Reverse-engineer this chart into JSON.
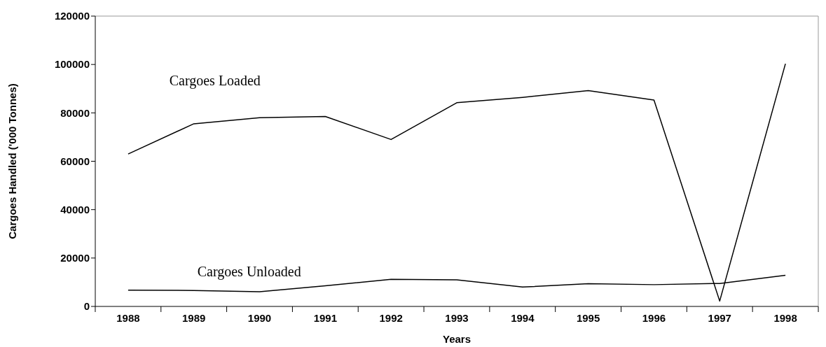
{
  "chart_data": {
    "type": "line",
    "xlabel": "Years",
    "ylabel": "Cargoes Handled ('000 Tonnes)",
    "categories": [
      "1988",
      "1989",
      "1990",
      "1991",
      "1992",
      "1993",
      "1994",
      "1995",
      "1996",
      "1997",
      "1998"
    ],
    "series": [
      {
        "name": "Cargoes Loaded",
        "color": "#000000",
        "values": [
          63000,
          75500,
          78000,
          78500,
          69000,
          84200,
          86400,
          89200,
          85300,
          2200,
          100300
        ]
      },
      {
        "name": "Cargoes Unloaded",
        "color": "#000000",
        "values": [
          6700,
          6600,
          6100,
          8500,
          11200,
          11000,
          8000,
          9400,
          9000,
          9500,
          12900
        ]
      }
    ],
    "ylim": [
      0,
      120000
    ],
    "yticks": [
      0,
      20000,
      40000,
      60000,
      80000,
      100000,
      120000
    ],
    "marker": "none",
    "line_style": "solid"
  }
}
